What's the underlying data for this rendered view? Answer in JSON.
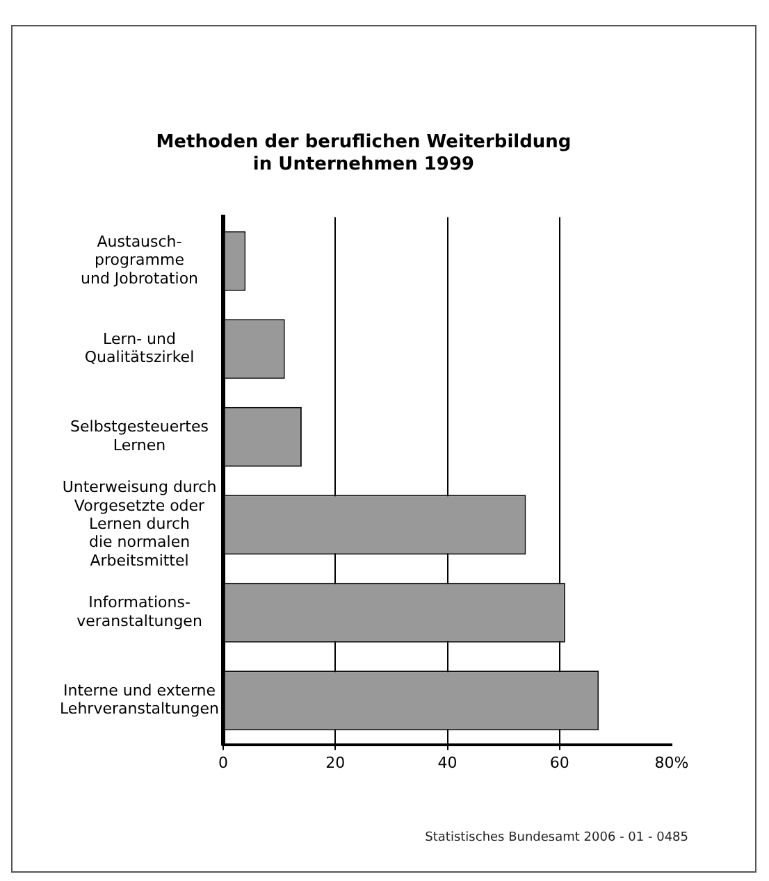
{
  "chart_data": {
    "type": "bar",
    "orientation": "horizontal",
    "title": "Methoden der beruflichen Weiterbildung\nin Unternehmen 1999",
    "categories": [
      "Austausch-\nprogramme\nund Jobrotation",
      "Lern- und\nQualitätszirkel",
      "Selbstgesteuertes\nLernen",
      "Unterweisung durch\nVorgesetzte oder\nLernen durch\ndie normalen\nArbeitsmittel",
      "Informations-\nveranstaltungen",
      "Interne und externe\nLehrveranstaltungen"
    ],
    "values": [
      4,
      11,
      14,
      54,
      61,
      67
    ],
    "color": "#999999",
    "xlim": [
      0,
      80
    ],
    "xticks": [
      0,
      20,
      40,
      60,
      {
        "value": 80,
        "label": "80%"
      }
    ],
    "grid": "x",
    "annotations": [
      "Statistisches Bundesamt 2006 - 01 - 0485"
    ]
  }
}
